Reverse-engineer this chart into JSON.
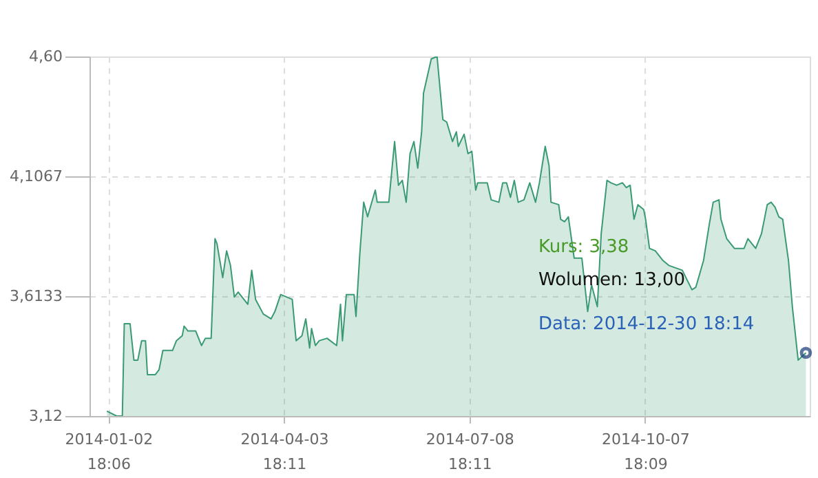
{
  "chart_data": {
    "type": "area",
    "x": [
      "2014-01-02",
      "2014-01-07",
      "2014-01-10",
      "2014-01-11",
      "2014-01-14",
      "2014-01-16",
      "2014-01-18",
      "2014-01-20",
      "2014-01-22",
      "2014-01-23",
      "2014-01-27",
      "2014-01-29",
      "2014-01-31",
      "2014-02-05",
      "2014-02-07",
      "2014-02-10",
      "2014-02-11",
      "2014-02-13",
      "2014-02-17",
      "2014-02-20",
      "2014-02-22",
      "2014-02-25",
      "2014-02-27",
      "2014-02-28",
      "2014-03-03",
      "2014-03-05",
      "2014-03-07",
      "2014-03-09",
      "2014-03-11",
      "2014-03-16",
      "2014-03-18",
      "2014-03-20",
      "2014-03-24",
      "2014-03-28",
      "2014-03-30",
      "2014-04-02",
      "2014-04-08",
      "2014-04-10",
      "2014-04-13",
      "2014-04-15",
      "2014-04-17",
      "2014-04-18",
      "2014-04-20",
      "2014-04-22",
      "2014-04-26",
      "2014-05-01",
      "2014-05-03",
      "2014-05-04",
      "2014-05-06",
      "2014-05-10",
      "2014-05-11",
      "2014-05-13",
      "2014-05-15",
      "2014-05-17",
      "2014-05-21",
      "2014-05-22",
      "2014-05-28",
      "2014-05-31",
      "2014-06-02",
      "2014-06-04",
      "2014-06-06",
      "2014-06-08",
      "2014-06-10",
      "2014-06-12",
      "2014-06-14",
      "2014-06-15",
      "2014-06-19",
      "2014-06-22",
      "2014-06-25",
      "2014-06-27",
      "2014-06-30",
      "2014-07-02",
      "2014-07-03",
      "2014-07-06",
      "2014-07-08",
      "2014-07-10",
      "2014-07-12",
      "2014-07-13",
      "2014-07-18",
      "2014-07-20",
      "2014-07-24",
      "2014-07-26",
      "2014-07-28",
      "2014-07-30",
      "2014-08-01",
      "2014-08-03",
      "2014-08-06",
      "2014-08-09",
      "2014-08-12",
      "2014-08-14",
      "2014-08-17",
      "2014-08-19",
      "2014-08-20",
      "2014-08-24",
      "2014-08-25",
      "2014-08-27",
      "2014-08-29",
      "2014-09-01",
      "2014-09-05",
      "2014-09-08",
      "2014-09-10",
      "2014-09-13",
      "2014-09-15",
      "2014-09-18",
      "2014-09-20",
      "2014-09-23",
      "2014-09-26",
      "2014-09-28",
      "2014-09-30",
      "2014-10-02",
      "2014-10-04",
      "2014-10-07",
      "2014-10-08",
      "2014-10-10",
      "2014-10-13",
      "2014-10-17",
      "2014-10-20",
      "2014-10-27",
      "2014-11-01",
      "2014-11-03",
      "2014-11-07",
      "2014-11-10",
      "2014-11-12",
      "2014-11-15",
      "2014-11-16",
      "2014-11-19",
      "2014-11-23",
      "2014-11-28",
      "2014-11-30",
      "2014-12-04",
      "2014-12-07",
      "2014-12-10",
      "2014-12-12",
      "2014-12-14",
      "2014-12-16",
      "2014-12-18",
      "2014-12-21",
      "2014-12-23",
      "2014-12-26",
      "2014-12-30"
    ],
    "series": [
      {
        "color": "#3a9a74",
        "values": [
          3.14,
          3.12,
          3.12,
          3.5,
          3.5,
          3.35,
          3.35,
          3.43,
          3.43,
          3.29,
          3.29,
          3.31,
          3.39,
          3.39,
          3.43,
          3.45,
          3.49,
          3.47,
          3.47,
          3.41,
          3.44,
          3.44,
          3.85,
          3.83,
          3.69,
          3.8,
          3.74,
          3.61,
          3.63,
          3.58,
          3.72,
          3.6,
          3.54,
          3.52,
          3.55,
          3.62,
          3.6,
          3.43,
          3.45,
          3.52,
          3.4,
          3.48,
          3.41,
          3.43,
          3.44,
          3.41,
          3.58,
          3.43,
          3.62,
          3.62,
          3.53,
          3.79,
          4.0,
          3.94,
          4.05,
          4.0,
          4.0,
          4.25,
          4.07,
          4.09,
          4.0,
          4.2,
          4.25,
          4.14,
          4.29,
          4.45,
          4.59,
          4.6,
          4.34,
          4.33,
          4.25,
          4.29,
          4.23,
          4.28,
          4.2,
          4.21,
          4.05,
          4.08,
          4.08,
          4.01,
          4.0,
          4.08,
          4.08,
          4.02,
          4.09,
          4.0,
          4.01,
          4.08,
          4.0,
          4.08,
          4.23,
          4.15,
          4.0,
          3.99,
          3.93,
          3.92,
          3.94,
          3.77,
          3.77,
          3.55,
          3.66,
          3.57,
          3.87,
          4.09,
          4.08,
          4.07,
          4.08,
          4.06,
          4.07,
          3.93,
          3.99,
          3.97,
          3.93,
          3.81,
          3.8,
          3.76,
          3.74,
          3.72,
          3.64,
          3.65,
          3.76,
          3.91,
          4.0,
          4.01,
          3.93,
          3.85,
          3.81,
          3.81,
          3.85,
          3.81,
          3.87,
          3.99,
          4.0,
          3.98,
          3.94,
          3.93,
          3.76,
          3.57,
          3.35,
          3.38
        ]
      }
    ],
    "xlim": [
      "2013-12-24",
      "2015-01-01"
    ],
    "xticks": [
      {
        "value": "2014-01-02T18:06",
        "label": "2014-01-02 18:06"
      },
      {
        "value": "2014-04-03T18:11",
        "label": "2014-04-03 18:11"
      },
      {
        "value": "2014-07-08T18:11",
        "label": "2014-07-08 18:11"
      },
      {
        "value": "2014-10-07T18:09",
        "label": "2014-10-07 18:09"
      }
    ],
    "ylim": [
      3.12,
      4.6
    ],
    "yticks": [
      {
        "value": 3.12,
        "label": "3,12"
      },
      {
        "value": 3.6133,
        "label": "3,6133"
      },
      {
        "value": 4.1067,
        "label": "4,1067"
      },
      {
        "value": 4.6,
        "label": "4,60"
      }
    ],
    "grid": true,
    "annotations": [
      "Kurs: 3,38",
      "Wolumen: 13,00",
      "Data: 2014-12-30 18:14"
    ]
  }
}
